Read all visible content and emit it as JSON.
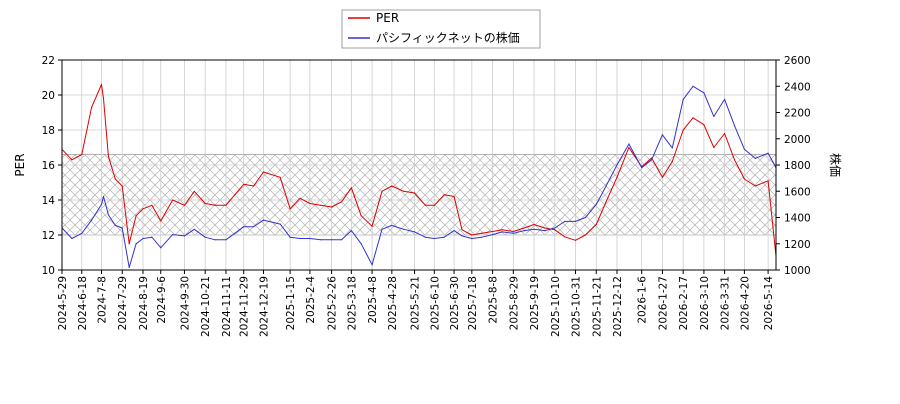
{
  "chart_data": {
    "type": "line",
    "dual_axis": true,
    "legend": {
      "placement": "top-center",
      "entries": [
        {
          "label": "PER",
          "color": "#dd0000"
        },
        {
          "label": "パシフィックネットの株価",
          "color": "#3333cc"
        }
      ]
    },
    "y_left": {
      "label": "PER",
      "ylim": [
        10,
        22
      ],
      "ticks": [
        "10",
        "12",
        "14",
        "16",
        "18",
        "20",
        "22"
      ]
    },
    "y_right": {
      "label": "株価",
      "ylim": [
        1000,
        2600
      ],
      "ticks": [
        "1000",
        "1200",
        "1400",
        "1600",
        "1800",
        "2000",
        "2200",
        "2400",
        "2600"
      ]
    },
    "x_tick_labels": [
      "2024-5-29",
      "2024-6-18",
      "2024-7-8",
      "2024-7-29",
      "2024-8-19",
      "2024-9-6",
      "2024-9-30",
      "2024-10-21",
      "2024-11-11",
      "2024-11-29",
      "2024-12-19",
      "2025-1-15",
      "2025-2-4",
      "2025-2-26",
      "2025-3-18",
      "2025-4-8",
      "2025-4-28",
      "2025-5-21",
      "2025-6-10",
      "2025-6-30",
      "2025-7-18",
      "2025-8-8",
      "2025-8-29",
      "2025-9-19",
      "2025-10-10",
      "2025-10-31",
      "2025-11-21",
      "2025-12-12",
      "2026-1-6",
      "2026-1-27",
      "2026-2-17",
      "2026-3-10",
      "2026-3-31",
      "2026-4-20",
      "2026-5-14"
    ],
    "hatched_band": {
      "y_from": 12,
      "y_to": 16.6,
      "axis": "left"
    },
    "grid": true,
    "series": [
      {
        "name": "PER",
        "axis": "left",
        "color": "#dd0000",
        "x_dates": [
          "2024-5-29",
          "2024-6-8",
          "2024-6-18",
          "2024-6-28",
          "2024-7-8",
          "2024-7-10",
          "2024-7-15",
          "2024-7-22",
          "2024-7-29",
          "2024-8-5",
          "2024-8-12",
          "2024-8-19",
          "2024-8-28",
          "2024-9-6",
          "2024-9-18",
          "2024-9-30",
          "2024-10-10",
          "2024-10-21",
          "2024-10-31",
          "2024-11-11",
          "2024-11-20",
          "2024-11-29",
          "2024-12-9",
          "2024-12-19",
          "2025-1-5",
          "2025-1-15",
          "2025-1-25",
          "2025-2-4",
          "2025-2-15",
          "2025-2-26",
          "2025-3-8",
          "2025-3-18",
          "2025-3-28",
          "2025-4-8",
          "2025-4-18",
          "2025-4-28",
          "2025-5-10",
          "2025-5-21",
          "2025-6-1",
          "2025-6-10",
          "2025-6-20",
          "2025-6-30",
          "2025-7-8",
          "2025-7-18",
          "2025-7-28",
          "2025-8-8",
          "2025-8-18",
          "2025-8-29",
          "2025-9-9",
          "2025-9-19",
          "2025-9-30",
          "2025-10-10",
          "2025-10-20",
          "2025-10-31",
          "2025-11-10",
          "2025-11-21",
          "2025-12-1",
          "2025-12-12",
          "2025-12-24",
          "2026-1-6",
          "2026-1-16",
          "2026-1-27",
          "2026-2-6",
          "2026-2-17",
          "2026-2-27",
          "2026-3-10",
          "2026-3-20",
          "2026-3-31",
          "2026-4-10",
          "2026-4-20",
          "2026-5-1",
          "2026-5-14",
          "2026-5-22"
        ],
        "values": [
          16.9,
          16.3,
          16.6,
          19.3,
          20.6,
          19.8,
          16.5,
          15.2,
          14.8,
          11.5,
          13.1,
          13.5,
          13.7,
          12.8,
          14.0,
          13.7,
          14.5,
          13.8,
          13.7,
          13.7,
          14.3,
          14.9,
          14.8,
          15.6,
          15.3,
          13.5,
          14.1,
          13.8,
          13.7,
          13.6,
          13.9,
          14.7,
          13.1,
          12.5,
          14.5,
          14.8,
          14.5,
          14.4,
          13.7,
          13.7,
          14.3,
          14.2,
          12.3,
          12.0,
          12.1,
          12.2,
          12.3,
          12.2,
          12.4,
          12.6,
          12.4,
          12.3,
          11.9,
          11.7,
          12.0,
          12.6,
          13.9,
          15.3,
          17.0,
          15.9,
          16.4,
          15.3,
          16.2,
          18.0,
          18.7,
          18.3,
          17.0,
          17.8,
          16.3,
          15.2,
          14.8,
          15.1,
          10.8
        ]
      },
      {
        "name": "パシフィックネットの株価",
        "axis": "right",
        "color": "#3333cc",
        "x_dates": [
          "2024-5-29",
          "2024-6-8",
          "2024-6-18",
          "2024-6-28",
          "2024-7-8",
          "2024-7-10",
          "2024-7-15",
          "2024-7-22",
          "2024-7-29",
          "2024-8-5",
          "2024-8-12",
          "2024-8-19",
          "2024-8-28",
          "2024-9-6",
          "2024-9-18",
          "2024-9-30",
          "2024-10-10",
          "2024-10-21",
          "2024-10-31",
          "2024-11-11",
          "2024-11-20",
          "2024-11-29",
          "2024-12-9",
          "2024-12-19",
          "2025-1-5",
          "2025-1-15",
          "2025-1-25",
          "2025-2-4",
          "2025-2-15",
          "2025-2-26",
          "2025-3-8",
          "2025-3-18",
          "2025-3-28",
          "2025-4-8",
          "2025-4-18",
          "2025-4-28",
          "2025-5-10",
          "2025-5-21",
          "2025-6-1",
          "2025-6-10",
          "2025-6-20",
          "2025-6-30",
          "2025-7-8",
          "2025-7-18",
          "2025-7-28",
          "2025-8-8",
          "2025-8-18",
          "2025-8-29",
          "2025-9-9",
          "2025-9-19",
          "2025-9-30",
          "2025-10-10",
          "2025-10-20",
          "2025-10-31",
          "2025-11-10",
          "2025-11-21",
          "2025-12-1",
          "2025-12-12",
          "2025-12-24",
          "2026-1-6",
          "2026-1-16",
          "2026-1-27",
          "2026-2-6",
          "2026-2-17",
          "2026-2-27",
          "2026-3-10",
          "2026-3-20",
          "2026-3-31",
          "2026-4-10",
          "2026-4-20",
          "2026-5-1",
          "2026-5-14",
          "2026-5-22"
        ],
        "values": [
          1320,
          1240,
          1280,
          1380,
          1500,
          1560,
          1420,
          1340,
          1320,
          1020,
          1200,
          1240,
          1250,
          1170,
          1270,
          1260,
          1310,
          1250,
          1230,
          1230,
          1280,
          1330,
          1330,
          1380,
          1350,
          1250,
          1240,
          1240,
          1230,
          1230,
          1230,
          1300,
          1200,
          1040,
          1310,
          1340,
          1310,
          1290,
          1250,
          1240,
          1250,
          1300,
          1260,
          1240,
          1250,
          1270,
          1290,
          1280,
          1300,
          1310,
          1300,
          1320,
          1370,
          1370,
          1400,
          1500,
          1640,
          1800,
          1960,
          1780,
          1840,
          2030,
          1930,
          2300,
          2400,
          2350,
          2170,
          2300,
          2100,
          1920,
          1850,
          1890,
          1780
        ]
      }
    ]
  }
}
